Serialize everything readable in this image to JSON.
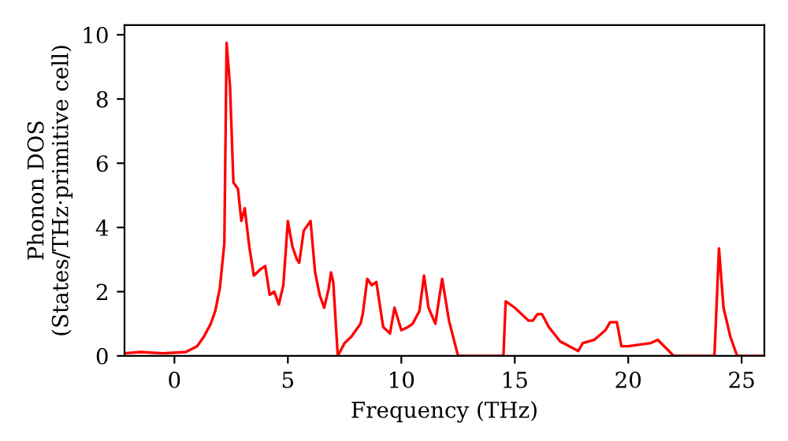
{
  "chart_data": {
    "type": "line",
    "xlabel": "Frequency (THz)",
    "ylabel": "Phonon DOS\n(States/THz·primitive cell)",
    "xlim": [
      -2.2,
      26
    ],
    "ylim": [
      0,
      10.3
    ],
    "xticks": [
      0,
      5,
      10,
      15,
      20,
      25
    ],
    "yticks": [
      0,
      2,
      4,
      6,
      8,
      10
    ],
    "grid": false,
    "series": [
      {
        "color": "#ff0000",
        "x": [
          -2.2,
          -1.5,
          -0.5,
          0.5,
          1.0,
          1.3,
          1.6,
          1.8,
          2.0,
          2.2,
          2.3,
          2.45,
          2.6,
          2.8,
          2.95,
          3.1,
          3.3,
          3.5,
          3.8,
          4.0,
          4.2,
          4.4,
          4.6,
          4.8,
          5.0,
          5.2,
          5.4,
          5.5,
          5.7,
          6.0,
          6.2,
          6.4,
          6.6,
          6.8,
          6.9,
          7.0,
          7.2,
          7.5,
          7.8,
          8.0,
          8.2,
          8.3,
          8.5,
          8.7,
          8.9,
          9.2,
          9.5,
          9.7,
          10.0,
          10.3,
          10.5,
          10.8,
          11.0,
          11.2,
          11.5,
          11.8,
          12.1,
          12.5,
          14.0,
          14.5,
          14.6,
          15.0,
          15.3,
          15.6,
          15.8,
          16.0,
          16.2,
          16.5,
          17.0,
          17.8,
          18.0,
          18.5,
          19.0,
          19.2,
          19.5,
          19.7,
          20.0,
          21.0,
          21.3,
          21.8,
          22.0,
          23.8,
          24.0,
          24.2,
          24.5,
          24.8,
          26.0
        ],
        "values": [
          0.08,
          0.12,
          0.08,
          0.12,
          0.3,
          0.6,
          1.0,
          1.4,
          2.1,
          3.5,
          9.75,
          8.4,
          5.4,
          5.2,
          4.2,
          4.6,
          3.4,
          2.5,
          2.7,
          2.8,
          1.9,
          2.0,
          1.6,
          2.2,
          4.2,
          3.4,
          3.0,
          2.9,
          3.9,
          4.2,
          2.6,
          1.9,
          1.5,
          2.1,
          2.6,
          2.3,
          0.0,
          0.4,
          0.6,
          0.8,
          1.0,
          1.3,
          2.4,
          2.2,
          2.3,
          0.9,
          0.7,
          1.5,
          0.8,
          0.9,
          1.0,
          1.4,
          2.5,
          1.5,
          1.0,
          2.4,
          1.1,
          0.0,
          0.0,
          0.0,
          1.7,
          1.5,
          1.3,
          1.1,
          1.1,
          1.3,
          1.3,
          0.9,
          0.45,
          0.15,
          0.4,
          0.5,
          0.8,
          1.05,
          1.05,
          0.3,
          0.3,
          0.4,
          0.5,
          0.15,
          0.0,
          0.0,
          3.35,
          1.5,
          0.6,
          0.0,
          0.0
        ]
      }
    ]
  }
}
